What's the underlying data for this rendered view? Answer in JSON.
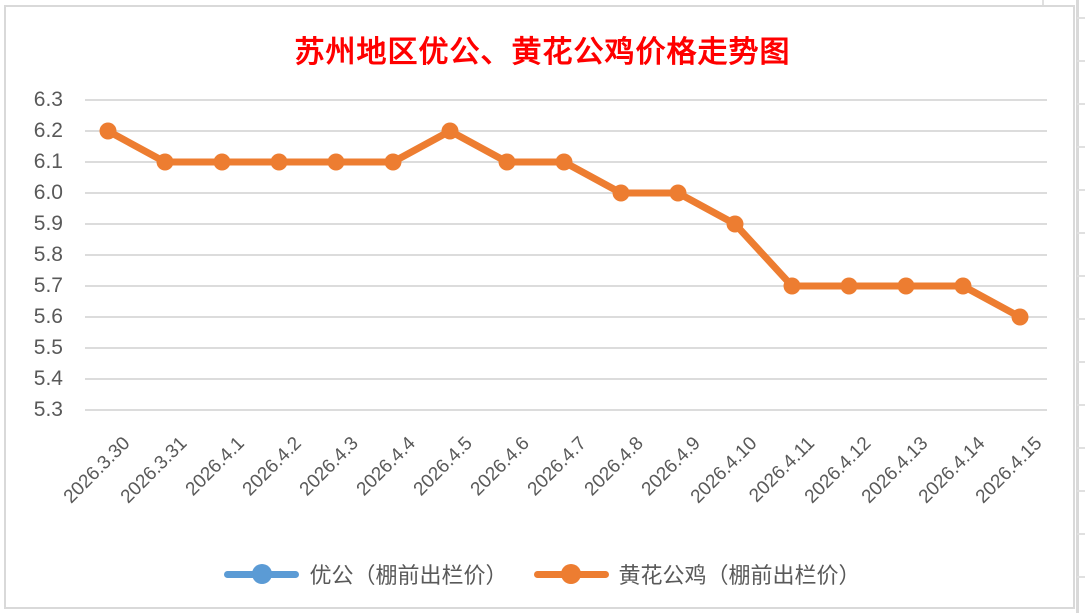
{
  "title": {
    "text": "苏州地区优公、黄花公鸡价格走势图"
  },
  "colors": {
    "title": "#FF0000",
    "axis_text": "#595959",
    "gridline": "#DCDCDC",
    "chart_border": "#D9D9D9",
    "background": "#FFFFFF",
    "series_yougong": "#5B9BD5",
    "series_huanghua": "#ED7D31"
  },
  "chart_data": {
    "type": "line",
    "title": "苏州地区优公、黄花公鸡价格走势图",
    "categories": [
      "2026.3.30",
      "2026.3.31",
      "2026.4.1",
      "2026.4.2",
      "2026.4.3",
      "2026.4.4",
      "2026.4.5",
      "2026.4.6",
      "2026.4.7",
      "2026.4.8",
      "2026.4.9",
      "2026.4.10",
      "2026.4.11",
      "2026.4.12",
      "2026.4.13",
      "2026.4.14",
      "2026.4.15"
    ],
    "series": [
      {
        "name": "优公（棚前出栏价）",
        "color": "#5B9BD5",
        "values": []
      },
      {
        "name": "黄花公鸡（棚前出栏价）",
        "color": "#ED7D31",
        "values": [
          6.2,
          6.1,
          6.1,
          6.1,
          6.1,
          6.1,
          6.2,
          6.1,
          6.1,
          6.0,
          6.0,
          5.9,
          5.7,
          5.7,
          5.7,
          5.7,
          5.6
        ]
      }
    ],
    "xlabel": "",
    "ylabel": "",
    "ylim": [
      5.3,
      6.3
    ],
    "y_tick_step": 0.1,
    "y_tick_labels": [
      "6.3",
      "6.2",
      "6.1",
      "6.0",
      "5.9",
      "5.8",
      "5.7",
      "5.6",
      "5.5",
      "5.4",
      "5.3"
    ],
    "grid": true,
    "legend_position": "bottom"
  }
}
